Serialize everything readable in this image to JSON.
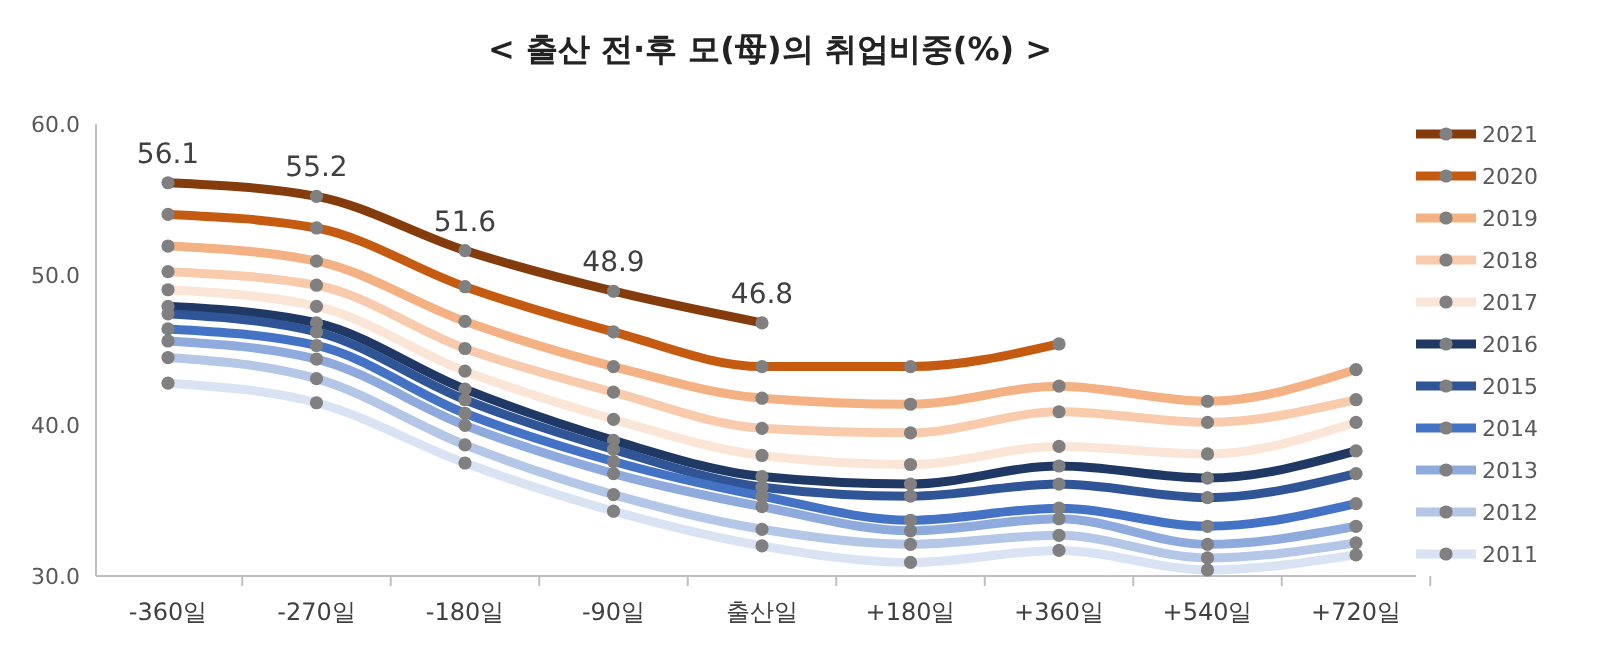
{
  "chart_data": {
    "type": "line",
    "title": "< 출산 전·후 모(母)의 취업비중(%) >",
    "categories": [
      "-360일",
      "-270일",
      "-180일",
      "-90일",
      "출산일",
      "+180일",
      "+360일",
      "+540일",
      "+720일"
    ],
    "ylim": [
      30,
      60
    ],
    "yticks": [
      {
        "value": 30,
        "label": "30.0"
      },
      {
        "value": 40,
        "label": "40.0"
      },
      {
        "value": 50,
        "label": "50.0"
      },
      {
        "value": 60,
        "label": "60.0"
      }
    ],
    "marker": "circle",
    "legend": "right",
    "grid": false,
    "series": [
      {
        "name": "2021",
        "color": "#843c0c",
        "values": [
          56.1,
          55.2,
          51.6,
          48.9,
          46.8,
          null,
          null,
          null,
          null
        ],
        "value_labels": [
          "56.1",
          "55.2",
          "51.6",
          "48.9",
          "46.8",
          null,
          null,
          null,
          null
        ]
      },
      {
        "name": "2020",
        "color": "#c55a11",
        "values": [
          54.0,
          53.1,
          49.2,
          46.2,
          43.9,
          43.9,
          45.4,
          null,
          null
        ]
      },
      {
        "name": "2019",
        "color": "#f4b183",
        "values": [
          51.9,
          50.9,
          46.9,
          43.9,
          41.8,
          41.4,
          42.6,
          41.6,
          43.7
        ]
      },
      {
        "name": "2018",
        "color": "#f8cbad",
        "values": [
          50.2,
          49.3,
          45.1,
          42.2,
          39.8,
          39.5,
          40.9,
          40.2,
          41.7
        ]
      },
      {
        "name": "2017",
        "color": "#fbe5d6",
        "values": [
          49.0,
          47.9,
          43.6,
          40.4,
          38.0,
          37.4,
          38.6,
          38.1,
          40.2
        ]
      },
      {
        "name": "2016",
        "color": "#1f3864",
        "values": [
          47.9,
          46.8,
          42.4,
          39.0,
          36.6,
          36.1,
          37.3,
          36.5,
          38.3
        ]
      },
      {
        "name": "2015",
        "color": "#2f5597",
        "values": [
          47.4,
          46.2,
          41.7,
          38.4,
          35.9,
          35.3,
          36.1,
          35.2,
          36.8
        ]
      },
      {
        "name": "2014",
        "color": "#4472c4",
        "values": [
          46.4,
          45.3,
          40.8,
          37.6,
          35.3,
          33.7,
          34.5,
          33.3,
          34.8
        ]
      },
      {
        "name": "2013",
        "color": "#8faadc",
        "values": [
          45.6,
          44.4,
          40.0,
          36.8,
          34.6,
          33.0,
          33.8,
          32.1,
          33.3
        ]
      },
      {
        "name": "2012",
        "color": "#b4c7e7",
        "values": [
          44.5,
          43.1,
          38.7,
          35.4,
          33.1,
          32.1,
          32.7,
          31.2,
          32.2
        ]
      },
      {
        "name": "2011",
        "color": "#dae3f3",
        "values": [
          42.8,
          41.5,
          37.5,
          34.3,
          32.0,
          30.9,
          31.7,
          30.4,
          31.4
        ]
      }
    ]
  }
}
